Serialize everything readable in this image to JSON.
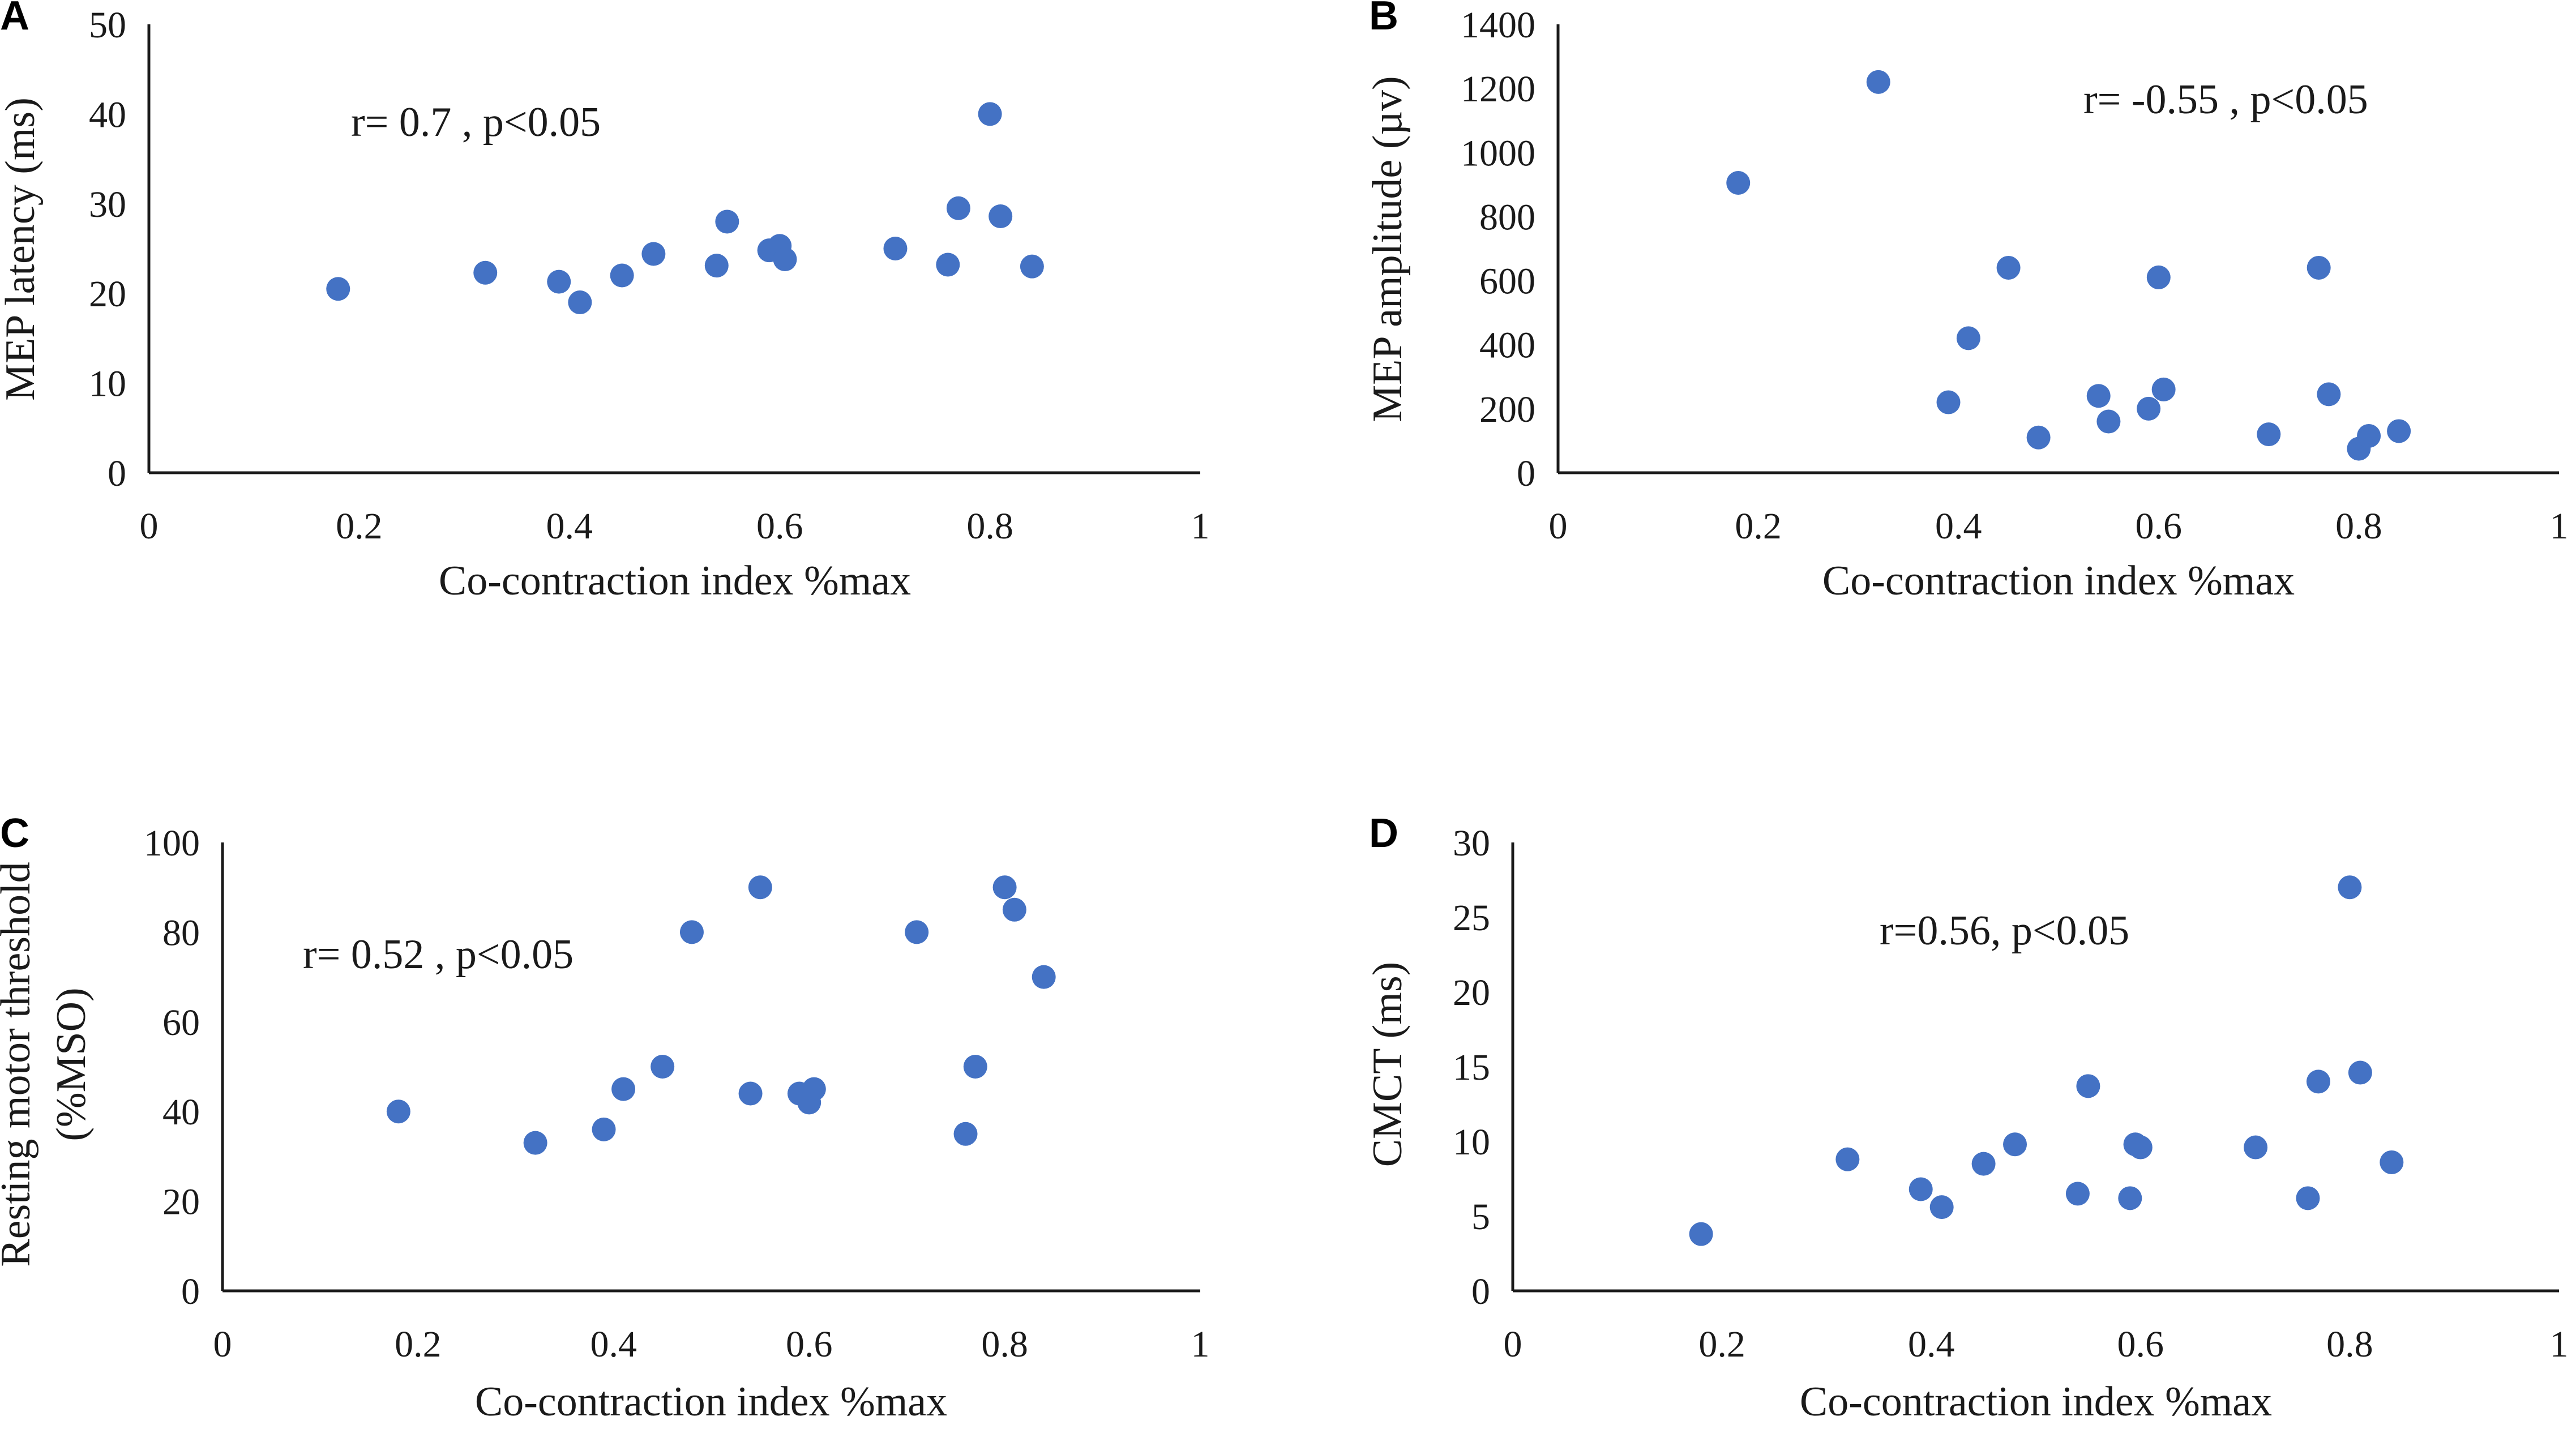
{
  "chart_data": [
    {
      "type": "scatter",
      "panel_label": "A",
      "title": "",
      "xlabel": "Co-contraction index %max",
      "ylabel": [
        "MEP latency (ms)"
      ],
      "annotation": "r= 0.7 , p<0.05",
      "xlim": [
        0,
        1
      ],
      "ylim": [
        0,
        50
      ],
      "xticks": [
        0,
        0.2,
        0.4,
        0.6,
        0.8,
        1
      ],
      "xtick_labels": [
        "0",
        "0.2",
        "0.4",
        "0.6",
        "0.8",
        "1"
      ],
      "yticks": [
        0,
        10,
        20,
        30,
        40,
        50
      ],
      "ytick_labels": [
        "0",
        "10",
        "20",
        "30",
        "40",
        "50"
      ],
      "grid": false,
      "color": "#4472C4",
      "x": [
        0.18,
        0.32,
        0.39,
        0.41,
        0.45,
        0.48,
        0.54,
        0.55,
        0.59,
        0.6,
        0.605,
        0.71,
        0.76,
        0.77,
        0.8,
        0.81,
        0.84
      ],
      "y": [
        20.5,
        22.3,
        21.3,
        19.0,
        22.0,
        24.4,
        23.1,
        28.0,
        24.8,
        25.3,
        23.8,
        25.0,
        23.2,
        29.5,
        40.0,
        28.6,
        23.0
      ]
    },
    {
      "type": "scatter",
      "panel_label": "B",
      "title": "",
      "xlabel": "Co-contraction index %max",
      "ylabel": [
        "MEP amplitude (µv)"
      ],
      "annotation": "r= -0.55 , p<0.05",
      "xlim": [
        0,
        1
      ],
      "ylim": [
        0,
        1400
      ],
      "xticks": [
        0,
        0.2,
        0.4,
        0.6,
        0.8,
        1
      ],
      "xtick_labels": [
        "0",
        "0.2",
        "0.4",
        "0.6",
        "0.8",
        "1"
      ],
      "yticks": [
        0,
        200,
        400,
        600,
        800,
        1000,
        1200,
        1400
      ],
      "ytick_labels": [
        "0",
        "200",
        "400",
        "600",
        "800",
        "1000",
        "1200",
        "1400"
      ],
      "grid": false,
      "color": "#4472C4",
      "x": [
        0.18,
        0.32,
        0.39,
        0.41,
        0.45,
        0.48,
        0.54,
        0.55,
        0.59,
        0.6,
        0.605,
        0.71,
        0.76,
        0.77,
        0.8,
        0.81,
        0.84
      ],
      "y": [
        905,
        1220,
        220,
        420,
        640,
        110,
        240,
        160,
        200,
        610,
        260,
        120,
        640,
        245,
        75,
        115,
        130
      ]
    },
    {
      "type": "scatter",
      "panel_label": "C",
      "title": "",
      "xlabel": "Co-contraction index %max",
      "ylabel": [
        "Resting motor threshold",
        "(%MSO)"
      ],
      "annotation": "r= 0.52 , p<0.05",
      "xlim": [
        0,
        1
      ],
      "ylim": [
        0,
        100
      ],
      "xticks": [
        0,
        0.2,
        0.4,
        0.6,
        0.8,
        1
      ],
      "xtick_labels": [
        "0",
        "0.2",
        "0.4",
        "0.6",
        "0.8",
        "1"
      ],
      "yticks": [
        0,
        20,
        40,
        60,
        80,
        100
      ],
      "ytick_labels": [
        "0",
        "20",
        "40",
        "60",
        "80",
        "100"
      ],
      "grid": false,
      "color": "#4472C4",
      "x": [
        0.18,
        0.32,
        0.39,
        0.41,
        0.45,
        0.48,
        0.54,
        0.55,
        0.59,
        0.6,
        0.605,
        0.71,
        0.76,
        0.77,
        0.8,
        0.81,
        0.84
      ],
      "y": [
        40,
        33,
        36,
        45,
        50,
        80,
        44,
        90,
        44,
        42,
        45,
        80,
        35,
        50,
        90,
        85,
        70
      ]
    },
    {
      "type": "scatter",
      "panel_label": "D",
      "title": "",
      "xlabel": "Co-contraction index %max",
      "ylabel": [
        "CMCT (ms)"
      ],
      "annotation": "r=0.56, p<0.05",
      "xlim": [
        0,
        1
      ],
      "ylim": [
        0,
        30
      ],
      "xticks": [
        0,
        0.2,
        0.4,
        0.6,
        0.8,
        1
      ],
      "xtick_labels": [
        "0",
        "0.2",
        "0.4",
        "0.6",
        "0.8",
        "1"
      ],
      "yticks": [
        0,
        5,
        10,
        15,
        20,
        25,
        30
      ],
      "ytick_labels": [
        "0",
        "5",
        "10",
        "15",
        "20",
        "25",
        "30"
      ],
      "grid": false,
      "color": "#4472C4",
      "x": [
        0.18,
        0.32,
        0.39,
        0.41,
        0.45,
        0.48,
        0.54,
        0.55,
        0.59,
        0.595,
        0.6,
        0.71,
        0.76,
        0.77,
        0.8,
        0.81,
        0.84
      ],
      "y": [
        3.8,
        8.8,
        6.8,
        5.6,
        8.5,
        9.8,
        6.5,
        13.7,
        6.2,
        9.8,
        9.6,
        9.6,
        6.2,
        14.0,
        27.0,
        14.6,
        8.6
      ]
    }
  ]
}
